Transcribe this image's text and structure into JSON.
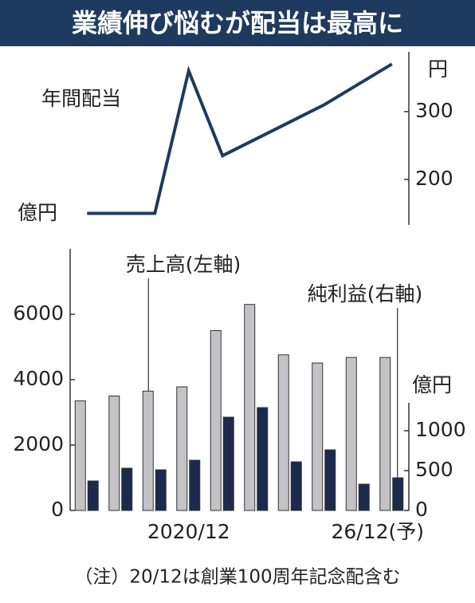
{
  "title": "業績伸び悩むが配当は最高に",
  "note": "（注）20/12は創業100周年記念配含む",
  "chart_data": [
    {
      "type": "line",
      "series": [
        {
          "name": "年間配当",
          "color": "#1f3a5f",
          "values": [
            150,
            150,
            150,
            360,
            235,
            260,
            285,
            310,
            340,
            370
          ]
        }
      ],
      "ylabel": "円",
      "ylim": [
        133,
        388
      ],
      "yticks": [
        200,
        300
      ]
    },
    {
      "type": "bar",
      "categories": [
        null,
        null,
        null,
        "2020/12",
        null,
        null,
        null,
        null,
        null,
        "26/12(予)"
      ],
      "series": [
        {
          "name": "売上高(左軸)",
          "color": "#c3c3c7",
          "values": [
            3350,
            3500,
            3650,
            3780,
            5500,
            6300,
            4760,
            4510,
            4680,
            4680
          ]
        },
        {
          "name": "純利益(右軸)",
          "color": "#1b2a4e",
          "axis": "y2",
          "values": [
            370,
            530,
            510,
            630,
            1170,
            1290,
            610,
            760,
            330,
            410
          ]
        }
      ],
      "ylabel": "億円",
      "y2label": "億円",
      "ylim": [
        0,
        8000
      ],
      "yticks": [
        0,
        2000,
        4000,
        6000
      ],
      "y2lim": [
        0,
        3280
      ],
      "y2ticks": [
        0,
        500,
        1000
      ]
    }
  ]
}
